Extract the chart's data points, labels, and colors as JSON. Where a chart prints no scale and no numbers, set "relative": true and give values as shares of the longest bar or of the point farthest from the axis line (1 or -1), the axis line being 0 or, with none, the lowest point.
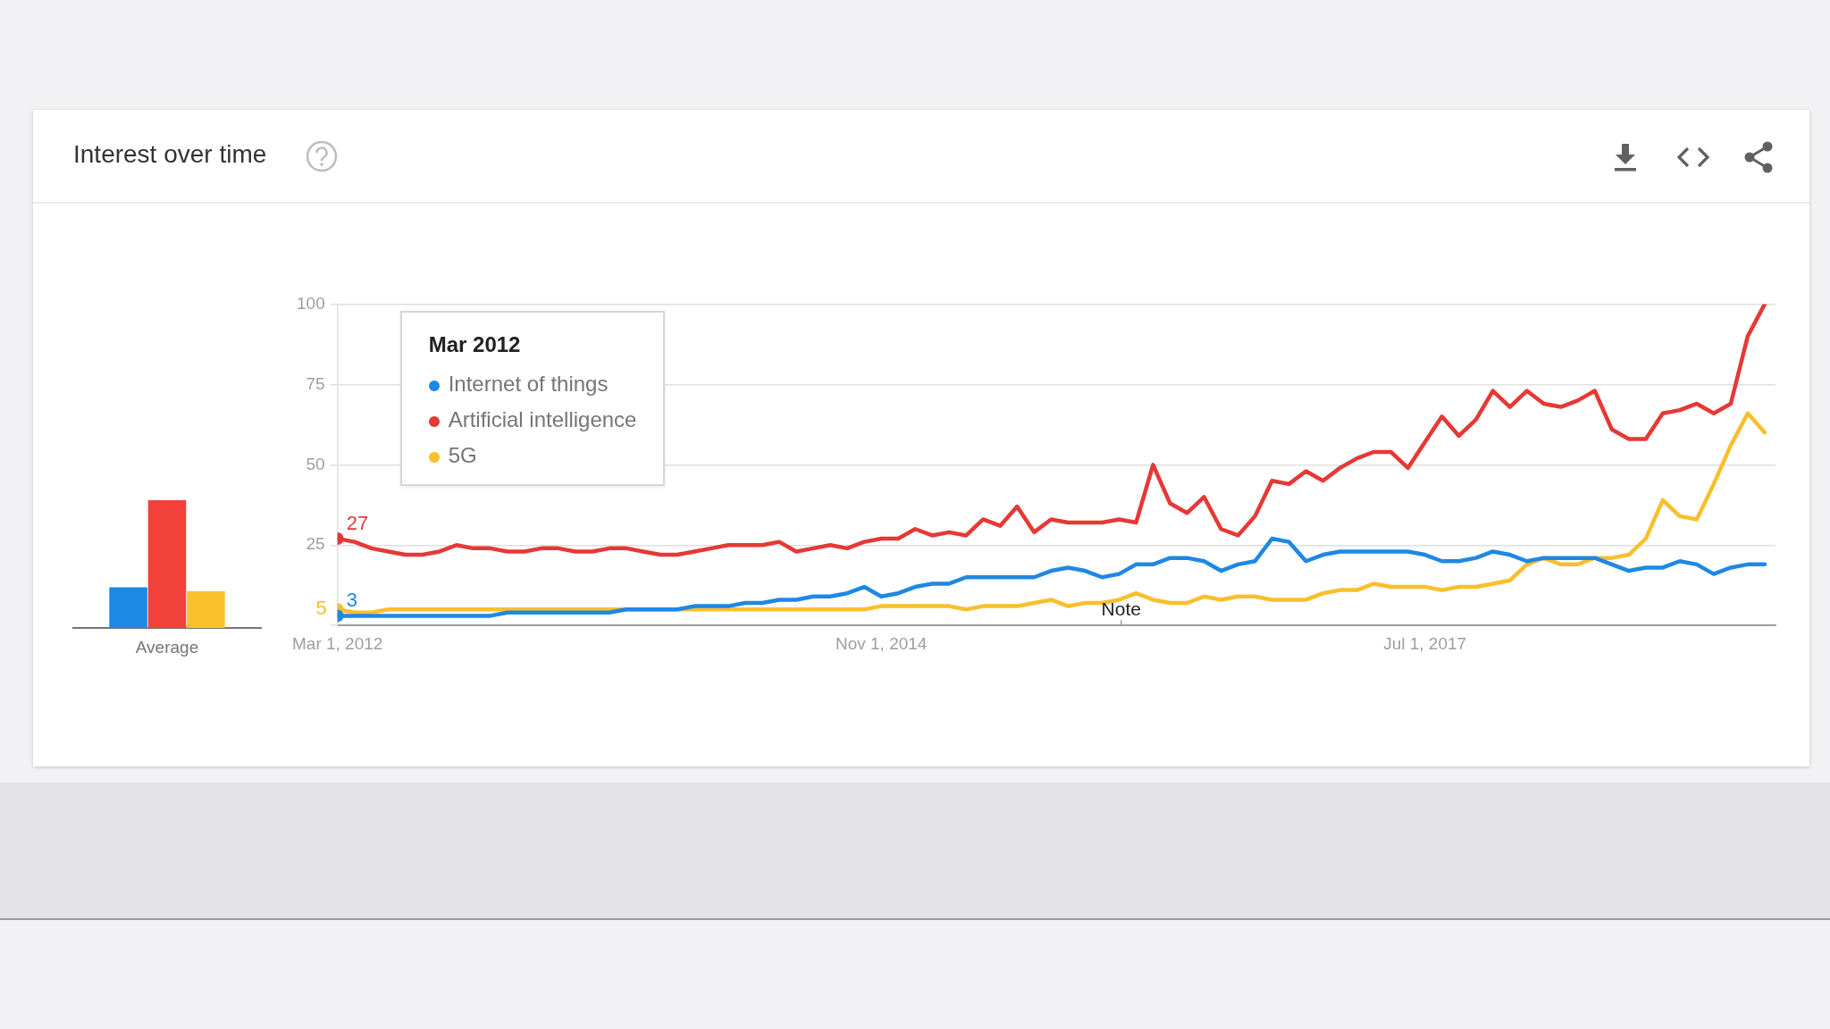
{
  "chart_data": [
    {
      "type": "bar",
      "categories": [
        "Average"
      ],
      "relative": true,
      "series": [
        {
          "color": "#1e88e5",
          "values": [
            0.32
          ]
        },
        {
          "color": "#f2403a",
          "values": [
            1
          ]
        },
        {
          "color": "#fbc12d",
          "values": [
            0.29
          ]
        }
      ]
    },
    {
      "type": "line",
      "title": "Interest over time",
      "legend": "top left",
      "legend_title": "Mar 2012",
      "grid": "y",
      "x": [
        "2012-03",
        "2012-04",
        "2012-05",
        "2012-06",
        "2012-07",
        "2012-08",
        "2012-09",
        "2012-10",
        "2012-11",
        "2012-12",
        "2013-01",
        "2013-02",
        "2013-03",
        "2013-04",
        "2013-05",
        "2013-06",
        "2013-07",
        "2013-08",
        "2013-09",
        "2013-10",
        "2013-11",
        "2013-12",
        "2014-01",
        "2014-02",
        "2014-03",
        "2014-04",
        "2014-05",
        "2014-06",
        "2014-07",
        "2014-08",
        "2014-09",
        "2014-10",
        "2014-11",
        "2014-12",
        "2015-01",
        "2015-02",
        "2015-03",
        "2015-04",
        "2015-05",
        "2015-06",
        "2015-07",
        "2015-08",
        "2015-09",
        "2015-10",
        "2015-11",
        "2015-12",
        "2016-01",
        "2016-02",
        "2016-03",
        "2016-04",
        "2016-05",
        "2016-06",
        "2016-07",
        "2016-08",
        "2016-09",
        "2016-10",
        "2016-11",
        "2016-12",
        "2017-01",
        "2017-02",
        "2017-03",
        "2017-04",
        "2017-05",
        "2017-06",
        "2017-07",
        "2017-08",
        "2017-09",
        "2017-10",
        "2017-11",
        "2017-12",
        "2018-01",
        "2018-02",
        "2018-03",
        "2018-04",
        "2018-05",
        "2018-06",
        "2018-07",
        "2018-08",
        "2018-09",
        "2018-10",
        "2018-11",
        "2018-12",
        "2019-01",
        "2019-02",
        "2019-03"
      ],
      "xlim": [
        "2012-03-01",
        "2019-03-20"
      ],
      "xticks": [
        {
          "value": "2012-03-01",
          "label": "Mar 1, 2012"
        },
        {
          "value": "2014-11-01",
          "label": "Nov 1, 2014"
        },
        {
          "value": "2017-07-01",
          "label": "Jul 1, 2017"
        }
      ],
      "ylim": [
        0,
        100
      ],
      "yticks": [
        {
          "value": 0,
          "label": null
        },
        25,
        50,
        75,
        100
      ],
      "annotations": [
        "Note"
      ],
      "series": [
        {
          "name": "Internet of things",
          "color": "#1e88e5",
          "value_labels": [
            "3",
            null,
            null,
            null,
            null,
            null,
            null,
            null,
            null,
            null,
            null,
            null,
            null,
            null,
            null,
            null,
            null,
            null,
            null,
            null,
            null,
            null,
            null,
            null,
            null,
            null,
            null,
            null,
            null,
            null,
            null,
            null,
            null,
            null,
            null,
            null,
            null,
            null,
            null,
            null,
            null,
            null,
            null,
            null,
            null,
            null,
            null,
            null,
            null,
            null,
            null,
            null,
            null,
            null,
            null,
            null,
            null,
            null,
            null,
            null,
            null,
            null,
            null,
            null,
            null,
            null,
            null,
            null,
            null,
            null,
            null,
            null,
            null,
            null,
            null,
            null,
            null,
            null,
            null,
            null,
            null,
            null,
            null,
            null,
            null
          ],
          "values": [
            3,
            3,
            3,
            3,
            3,
            3,
            3,
            3,
            3,
            3,
            4,
            4,
            4,
            4,
            4,
            4,
            4,
            5,
            5,
            5,
            5,
            6,
            6,
            6,
            7,
            7,
            8,
            8,
            9,
            9,
            10,
            12,
            9,
            10,
            12,
            13,
            13,
            15,
            15,
            15,
            15,
            15,
            17,
            18,
            17,
            15,
            16,
            19,
            19,
            21,
            21,
            20,
            17,
            19,
            20,
            27,
            26,
            20,
            22,
            23,
            23,
            23,
            23,
            23,
            22,
            20,
            20,
            21,
            23,
            22,
            20,
            21,
            21,
            21,
            21,
            19,
            17,
            18,
            18,
            20,
            19,
            16,
            18,
            19,
            19
          ]
        },
        {
          "name": "Artificial intelligence",
          "color": "#e53935",
          "value_labels": [
            "27",
            null,
            null,
            null,
            null,
            null,
            null,
            null,
            null,
            null,
            null,
            null,
            null,
            null,
            null,
            null,
            null,
            null,
            null,
            null,
            null,
            null,
            null,
            null,
            null,
            null,
            null,
            null,
            null,
            null,
            null,
            null,
            null,
            null,
            null,
            null,
            null,
            null,
            null,
            null,
            null,
            null,
            null,
            null,
            null,
            null,
            null,
            null,
            null,
            null,
            null,
            null,
            null,
            null,
            null,
            null,
            null,
            null,
            null,
            null,
            null,
            null,
            null,
            null,
            null,
            null,
            null,
            null,
            null,
            null,
            null,
            null,
            null,
            null,
            null,
            null,
            null,
            null,
            null,
            null,
            null,
            null,
            null,
            null,
            null
          ],
          "values": [
            27,
            26,
            24,
            23,
            22,
            22,
            23,
            25,
            24,
            24,
            23,
            23,
            24,
            24,
            23,
            23,
            24,
            24,
            23,
            22,
            22,
            23,
            24,
            25,
            25,
            25,
            26,
            23,
            24,
            25,
            24,
            26,
            27,
            27,
            30,
            28,
            29,
            28,
            33,
            31,
            37,
            29,
            33,
            32,
            32,
            32,
            33,
            32,
            50,
            38,
            35,
            40,
            30,
            28,
            34,
            45,
            44,
            48,
            45,
            49,
            52,
            54,
            54,
            49,
            57,
            65,
            59,
            64,
            73,
            68,
            73,
            69,
            68,
            70,
            73,
            61,
            58,
            58,
            66,
            67,
            69,
            66,
            69,
            90,
            100
          ]
        },
        {
          "name": "5G",
          "color": "#f9bf2c",
          "value_labels": [
            "5",
            null,
            null,
            null,
            null,
            null,
            null,
            null,
            null,
            null,
            null,
            null,
            null,
            null,
            null,
            null,
            null,
            null,
            null,
            null,
            null,
            null,
            null,
            null,
            null,
            null,
            null,
            null,
            null,
            null,
            null,
            null,
            null,
            null,
            null,
            null,
            null,
            null,
            null,
            null,
            null,
            null,
            null,
            null,
            null,
            null,
            null,
            null,
            null,
            null,
            null,
            null,
            null,
            null,
            null,
            null,
            null,
            null,
            null,
            null,
            null,
            null,
            null,
            null,
            null,
            null,
            null,
            null,
            null,
            null,
            null,
            null,
            null,
            null,
            null,
            null,
            null,
            null,
            null,
            null,
            null,
            null,
            null,
            null,
            null
          ],
          "values": [
            5,
            4,
            4,
            5,
            5,
            5,
            5,
            5,
            5,
            5,
            5,
            5,
            5,
            5,
            5,
            5,
            5,
            5,
            5,
            5,
            5,
            5,
            5,
            5,
            5,
            5,
            5,
            5,
            5,
            5,
            5,
            5,
            6,
            6,
            6,
            6,
            6,
            5,
            6,
            6,
            6,
            7,
            8,
            6,
            7,
            7,
            8,
            10,
            8,
            7,
            7,
            9,
            8,
            9,
            9,
            8,
            8,
            8,
            10,
            11,
            11,
            13,
            12,
            12,
            12,
            11,
            12,
            12,
            13,
            14,
            19,
            21,
            19,
            19,
            21,
            21,
            22,
            27,
            39,
            34,
            33,
            44,
            56,
            66,
            60
          ]
        }
      ]
    }
  ]
}
